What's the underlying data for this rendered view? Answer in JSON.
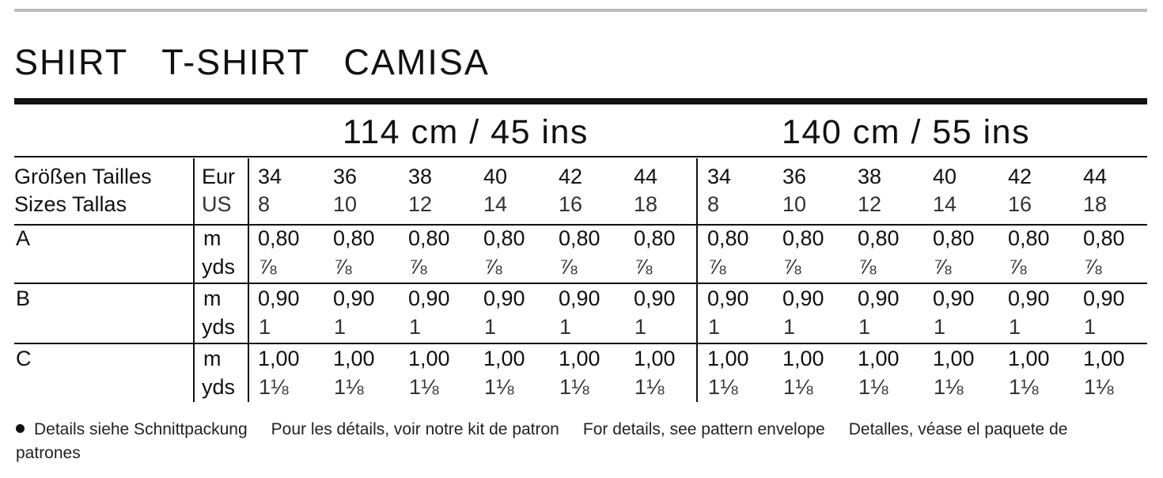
{
  "title": {
    "words": [
      "SHIRT",
      "T-SHIRT",
      "CAMISA"
    ]
  },
  "fabric_widths": [
    "114 cm / 45 ins",
    "140 cm / 55 ins"
  ],
  "header_labels": {
    "line1": "Größen Tailles",
    "line2": "Sizes Tallas",
    "eur": "Eur",
    "us": "US"
  },
  "sizes": [
    {
      "eur": "34",
      "us": "8"
    },
    {
      "eur": "36",
      "us": "10"
    },
    {
      "eur": "38",
      "us": "12"
    },
    {
      "eur": "40",
      "us": "14"
    },
    {
      "eur": "42",
      "us": "16"
    },
    {
      "eur": "44",
      "us": "18"
    }
  ],
  "units": {
    "metric": "m",
    "imperial": "yds"
  },
  "rows": [
    {
      "view": "A",
      "metric": "0,80",
      "imperial": "⅞"
    },
    {
      "view": "B",
      "metric": "0,90",
      "imperial": "1"
    },
    {
      "view": "C",
      "metric": "1,00",
      "imperial": "1⅛"
    }
  ],
  "footnote": {
    "de": "Details siehe Schnittpackung",
    "fr": "Pour les détails, voir notre kit de patron",
    "en": "For details, see pattern envelope",
    "es_line1": "Detalles, véase el paquete de",
    "es_line2": "patrones"
  }
}
